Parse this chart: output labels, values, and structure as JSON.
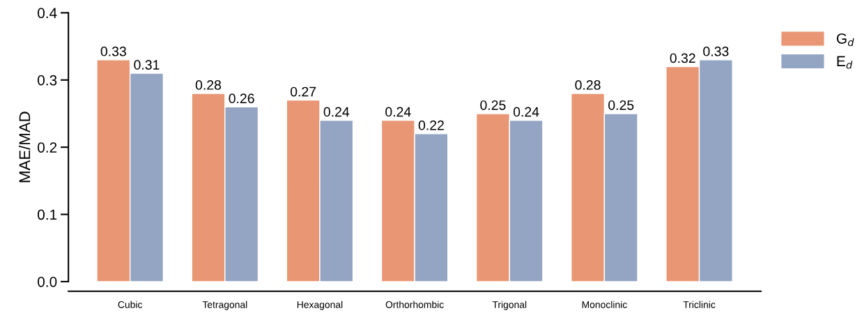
{
  "chart_data": {
    "type": "bar",
    "ylabel": "MAE/MAD",
    "categories": [
      "Cubic",
      "Tetragonal",
      "Hexagonal",
      "Orthorhombic",
      "Trigonal",
      "Monoclinic",
      "Triclinic"
    ],
    "series": [
      {
        "name": "G$_{d}$",
        "color": "#e99675",
        "values": [
          0.33,
          0.28,
          0.27,
          0.24,
          0.25,
          0.28,
          0.32
        ]
      },
      {
        "name": "E$_{d}$",
        "color": "#94a4c3",
        "values": [
          0.31,
          0.26,
          0.24,
          0.22,
          0.24,
          0.25,
          0.33
        ]
      }
    ],
    "ylim": [
      0,
      0.4
    ],
    "yticks": [
      {
        "value": 0,
        "label": "0.0"
      },
      0.1,
      0.2,
      0.3,
      0.4
    ],
    "data_labels": true,
    "legend": "top right",
    "grid": false
  }
}
